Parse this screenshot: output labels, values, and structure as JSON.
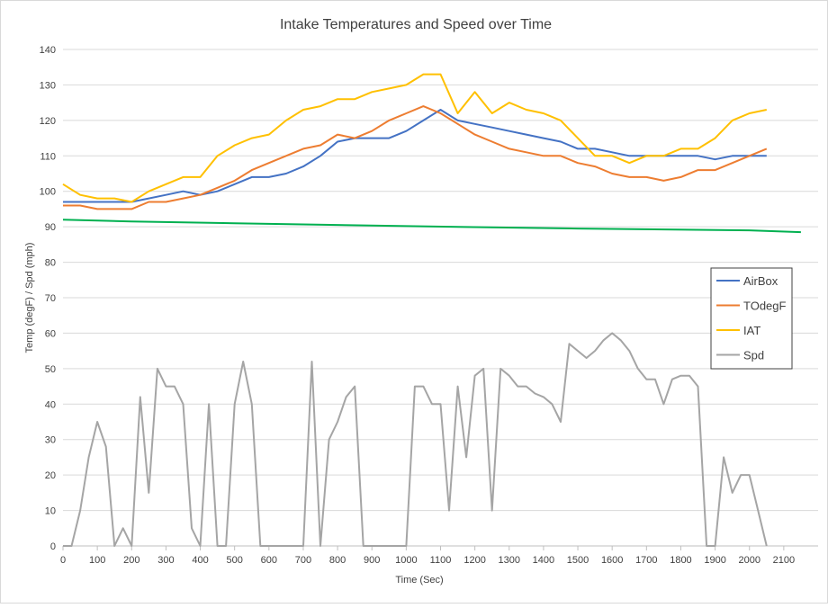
{
  "chart_data": {
    "type": "line",
    "title": "Intake Temperatures and Speed over Time",
    "xlabel": "Time (Sec)",
    "ylabel": "Temp (degF) / Spd (mph)",
    "xlim": [
      0,
      2200
    ],
    "xticks": [
      0,
      100,
      200,
      300,
      400,
      500,
      600,
      700,
      800,
      900,
      1000,
      1100,
      1200,
      1300,
      1400,
      1500,
      1600,
      1700,
      1800,
      1900,
      2000,
      2100
    ],
    "ylim": [
      0,
      140
    ],
    "yticks": [
      0,
      10,
      20,
      30,
      40,
      50,
      60,
      70,
      80,
      90,
      100,
      110,
      120,
      130,
      140
    ],
    "grid": true,
    "legend": "right",
    "series": [
      {
        "name": "AirBox",
        "color": "#4472c4",
        "x": [
          0,
          50,
          100,
          150,
          200,
          250,
          300,
          350,
          400,
          450,
          500,
          550,
          600,
          650,
          700,
          750,
          800,
          850,
          900,
          950,
          1000,
          1050,
          1100,
          1150,
          1200,
          1250,
          1300,
          1350,
          1400,
          1450,
          1500,
          1550,
          1600,
          1650,
          1700,
          1750,
          1800,
          1850,
          1900,
          1950,
          2000,
          2050
        ],
        "values": [
          97,
          97,
          97,
          97,
          97,
          98,
          99,
          100,
          99,
          100,
          102,
          104,
          104,
          105,
          107,
          110,
          114,
          115,
          115,
          115,
          117,
          120,
          123,
          120,
          119,
          118,
          117,
          116,
          115,
          114,
          112,
          112,
          111,
          110,
          110,
          110,
          110,
          110,
          109,
          110,
          110,
          110
        ]
      },
      {
        "name": "TOdegF",
        "color": "#ed7d31",
        "x": [
          0,
          50,
          100,
          150,
          200,
          250,
          300,
          350,
          400,
          450,
          500,
          550,
          600,
          650,
          700,
          750,
          800,
          850,
          900,
          950,
          1000,
          1050,
          1100,
          1150,
          1200,
          1250,
          1300,
          1350,
          1400,
          1450,
          1500,
          1550,
          1600,
          1650,
          1700,
          1750,
          1800,
          1850,
          1900,
          1950,
          2000,
          2050
        ],
        "values": [
          96,
          96,
          95,
          95,
          95,
          97,
          97,
          98,
          99,
          101,
          103,
          106,
          108,
          110,
          112,
          113,
          116,
          115,
          117,
          120,
          122,
          124,
          122,
          119,
          116,
          114,
          112,
          111,
          110,
          110,
          108,
          107,
          105,
          104,
          104,
          103,
          104,
          106,
          106,
          108,
          110,
          112
        ]
      },
      {
        "name": "IAT",
        "color": "#ffc000",
        "x": [
          0,
          50,
          100,
          150,
          200,
          250,
          300,
          350,
          400,
          450,
          500,
          550,
          600,
          650,
          700,
          750,
          800,
          850,
          900,
          950,
          1000,
          1050,
          1100,
          1150,
          1200,
          1250,
          1300,
          1350,
          1400,
          1450,
          1500,
          1550,
          1600,
          1650,
          1700,
          1750,
          1800,
          1850,
          1900,
          1950,
          2000,
          2050
        ],
        "values": [
          102,
          99,
          98,
          98,
          97,
          100,
          102,
          104,
          104,
          110,
          113,
          115,
          116,
          120,
          123,
          124,
          126,
          126,
          128,
          129,
          130,
          133,
          133,
          122,
          128,
          122,
          125,
          123,
          122,
          120,
          115,
          110,
          110,
          108,
          110,
          110,
          112,
          112,
          115,
          120,
          122,
          123
        ]
      },
      {
        "name": "Spd",
        "color": "#a5a5a5",
        "x": [
          0,
          25,
          50,
          75,
          100,
          125,
          150,
          175,
          200,
          225,
          250,
          275,
          300,
          325,
          350,
          375,
          400,
          425,
          450,
          475,
          500,
          525,
          550,
          575,
          600,
          625,
          650,
          675,
          700,
          725,
          750,
          775,
          800,
          825,
          850,
          875,
          900,
          925,
          950,
          975,
          1000,
          1025,
          1050,
          1075,
          1100,
          1125,
          1150,
          1175,
          1200,
          1225,
          1250,
          1275,
          1300,
          1325,
          1350,
          1375,
          1400,
          1425,
          1450,
          1475,
          1500,
          1525,
          1550,
          1575,
          1600,
          1625,
          1650,
          1675,
          1700,
          1725,
          1750,
          1775,
          1800,
          1825,
          1850,
          1875,
          1900,
          1925,
          1950,
          1975,
          2000,
          2025,
          2050
        ],
        "values": [
          0,
          0,
          10,
          25,
          35,
          28,
          0,
          5,
          0,
          42,
          15,
          50,
          45,
          45,
          40,
          5,
          0,
          40,
          0,
          0,
          40,
          52,
          40,
          0,
          0,
          0,
          0,
          0,
          0,
          52,
          0,
          30,
          35,
          42,
          45,
          0,
          0,
          0,
          0,
          0,
          0,
          45,
          45,
          40,
          40,
          10,
          45,
          25,
          48,
          50,
          10,
          50,
          48,
          45,
          45,
          43,
          42,
          40,
          35,
          57,
          55,
          53,
          55,
          58,
          60,
          58,
          55,
          50,
          47,
          47,
          40,
          47,
          48,
          48,
          45,
          0,
          0,
          25,
          15,
          20,
          20,
          10,
          0
        ]
      },
      {
        "color": "#00b050",
        "x": [
          0,
          200,
          500,
          1000,
          1500,
          2000,
          2150
        ],
        "values": [
          92,
          91.5,
          91,
          90.2,
          89.5,
          89,
          88.5
        ]
      }
    ]
  }
}
